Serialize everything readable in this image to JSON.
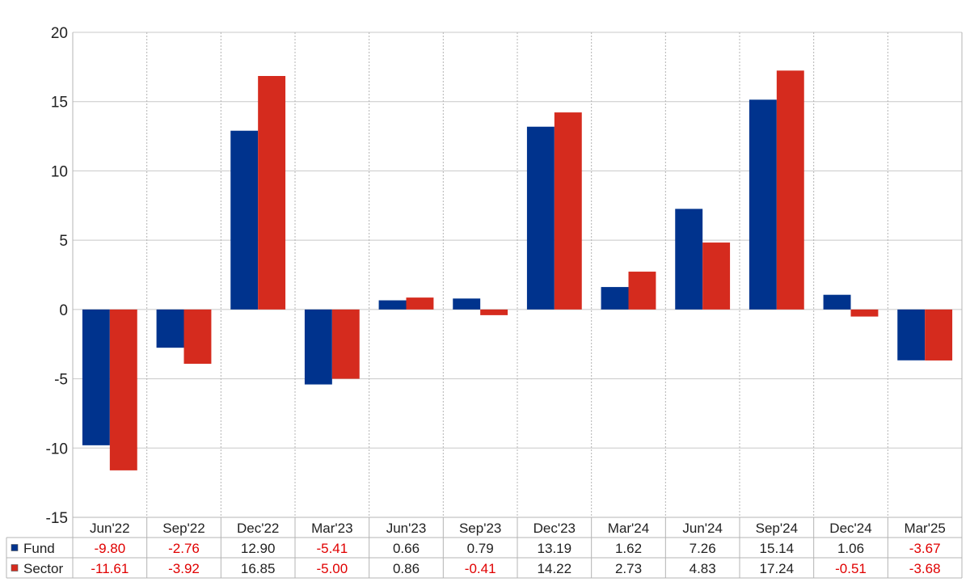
{
  "chart_data": {
    "type": "bar",
    "categories": [
      "Jun'22",
      "Sep'22",
      "Dec'22",
      "Mar'23",
      "Jun'23",
      "Sep'23",
      "Dec'23",
      "Mar'24",
      "Jun'24",
      "Sep'24",
      "Dec'24",
      "Mar'25"
    ],
    "series": [
      {
        "name": "Fund",
        "color": "#00338d",
        "values": [
          -9.8,
          -2.76,
          12.9,
          -5.41,
          0.66,
          0.79,
          13.19,
          1.62,
          7.26,
          15.14,
          1.06,
          -3.67
        ],
        "labels": [
          "-9.80",
          "-2.76",
          "12.90",
          "-5.41",
          "0.66",
          "0.79",
          "13.19",
          "1.62",
          "7.26",
          "15.14",
          "1.06",
          "-3.67"
        ]
      },
      {
        "name": "Sector",
        "color": "#d52b1e",
        "values": [
          -11.61,
          -3.92,
          16.85,
          -5.0,
          0.86,
          -0.41,
          14.22,
          2.73,
          4.83,
          17.24,
          -0.51,
          -3.68
        ],
        "labels": [
          "-11.61",
          "-3.92",
          "16.85",
          "-5.00",
          "0.86",
          "-0.41",
          "14.22",
          "2.73",
          "4.83",
          "17.24",
          "-0.51",
          "-3.68"
        ]
      }
    ],
    "y_ticks": [
      "20",
      "15",
      "10",
      "5",
      "0",
      "-5",
      "-10",
      "-15"
    ],
    "ylim": [
      -15,
      20
    ],
    "grid": true,
    "legend": "data-table",
    "title": "",
    "xlabel": "",
    "ylabel": "",
    "negative_color": "#e00000",
    "positive_color": "#222222"
  }
}
